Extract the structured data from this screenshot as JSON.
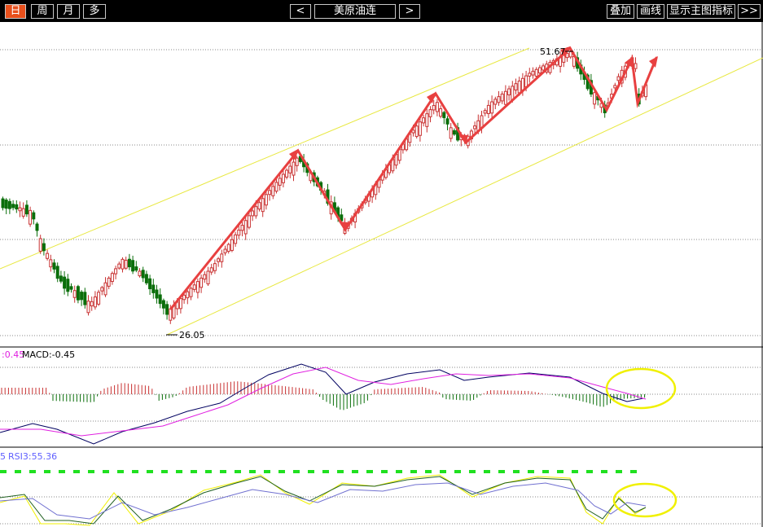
{
  "toolbar": {
    "period_day": "日",
    "period_week": "周",
    "period_month": "月",
    "period_multi": "多",
    "prev": "<",
    "title": "美原油连",
    "next": ">",
    "overlay": "叠加",
    "draw": "画线",
    "show_indicator": "显示主图指标",
    "more": ">>"
  },
  "main_chart": {
    "high_label": "51.67",
    "low_label": "26.05",
    "up_color": "#c83232",
    "down_color": "#0a6e0a",
    "channel_color": "#e8e840",
    "trend_arrow_color": "#e84040"
  },
  "macd_panel": {
    "label_a": ":0.45",
    "label_b": "MACD:-0.45",
    "label_a_color": "#e020e0",
    "dif_color": "#000060",
    "dea_color": "#e020e0",
    "highlight_color": "#f0f000"
  },
  "rsi_panel": {
    "label_prefix": "5",
    "label": "RSI3:55.36",
    "label_color": "#6060ff",
    "level_line_color": "#20e020"
  }
}
